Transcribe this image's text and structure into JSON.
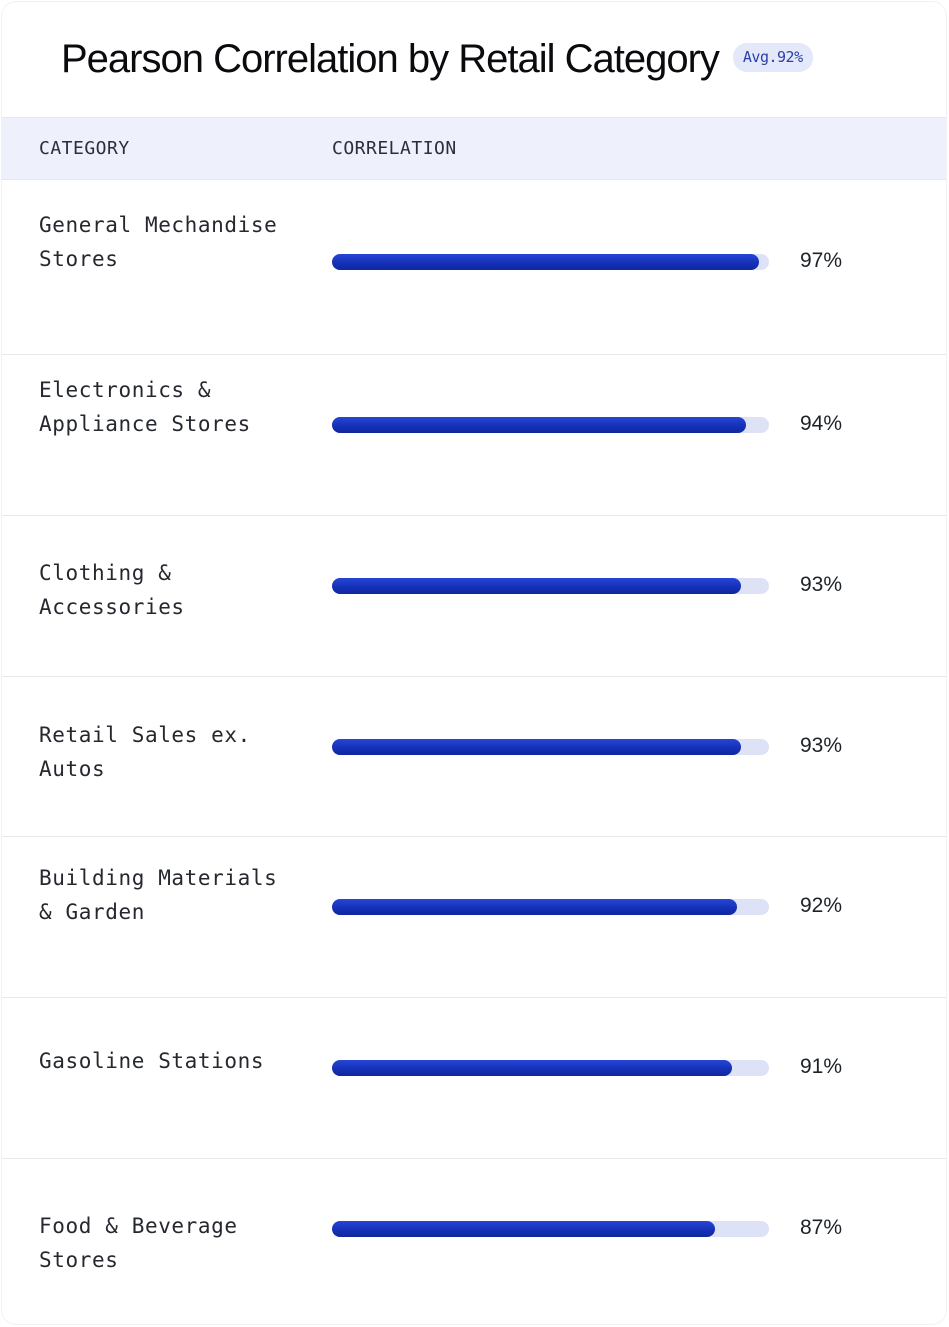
{
  "title": "Pearson Correlation by Retail Category",
  "badge": "Avg.92%",
  "columns": {
    "category": "CATEGORY",
    "correlation": "CORRELATION"
  },
  "colors": {
    "bar": "#1631b8",
    "track": "#dde2f7",
    "header_bg": "#eef0fc",
    "badge_bg": "#e3e8fb"
  },
  "chart_data": {
    "type": "bar",
    "orientation": "horizontal",
    "title": "Pearson Correlation by Retail Category",
    "categories": [
      "General Mechandise Stores",
      "Electronics & Appliance Stores",
      "Clothing & Accessories",
      "Retail Sales ex. Autos",
      "Building Materials & Garden",
      "Gasoline Stations",
      "Food & Beverage Stores"
    ],
    "values": [
      0.97,
      0.94,
      0.93,
      0.93,
      0.92,
      0.91,
      0.87
    ],
    "labels": [
      "97%",
      "94%",
      "93%",
      "93%",
      "92%",
      "91%",
      "87%"
    ],
    "xlim": [
      0,
      1
    ]
  },
  "rows": [
    {
      "category": "General Mechandise Stores",
      "value": 0.97,
      "label": "97%"
    },
    {
      "category": "Electronics & Appliance Stores",
      "value": 0.94,
      "label": "94%"
    },
    {
      "category": "Clothing & Accessories",
      "value": 0.93,
      "label": "93%"
    },
    {
      "category": "Retail Sales ex. Autos",
      "value": 0.93,
      "label": "93%"
    },
    {
      "category": "Building Materials & Garden",
      "value": 0.92,
      "label": "92%"
    },
    {
      "category": "Gasoline Stations",
      "value": 0.91,
      "label": "91%"
    },
    {
      "category": "Food & Beverage Stores",
      "value": 0.87,
      "label": "87%"
    }
  ]
}
